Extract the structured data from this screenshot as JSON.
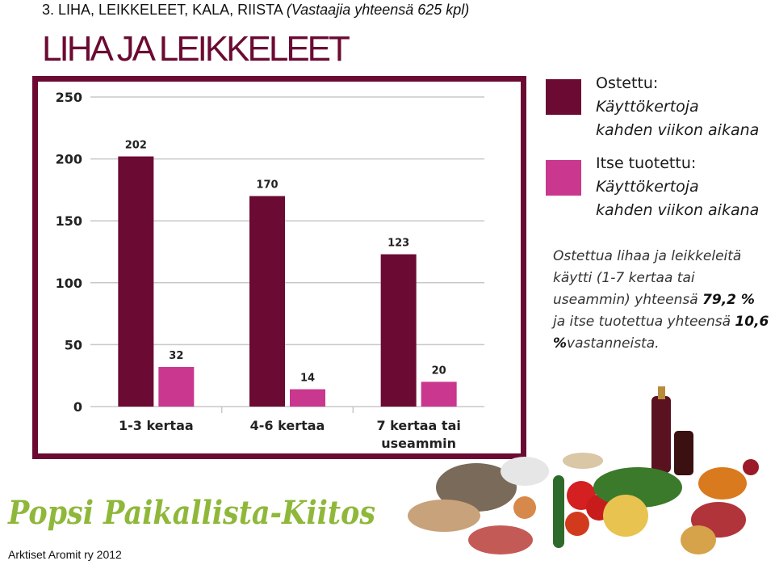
{
  "header": {
    "section": "3. LIHA, LEIKKELEET, KALA, RIISTA",
    "respondents": "(Vastaajia yhteensä 625 kpl)"
  },
  "title": "LIHA JA LEIKKELEET",
  "chart_data": {
    "type": "bar",
    "categories": [
      "1-3 kertaa",
      "4-6 kertaa",
      "7 kertaa tai useammin"
    ],
    "category_lines": [
      [
        "1-3 kertaa"
      ],
      [
        "4-6 kertaa"
      ],
      [
        "7 kertaa tai",
        "useammin"
      ]
    ],
    "series": [
      {
        "name": "Ostettu: Käyttökertoja kahden viikon aikana",
        "values": [
          202,
          170,
          123
        ],
        "color": "#6b0a33"
      },
      {
        "name": "Itse tuotettu: Käyttökertoja kahden viikon aikana",
        "values": [
          32,
          14,
          20
        ],
        "color": "#c9378e"
      }
    ],
    "yticks": [
      "0",
      "50",
      "100",
      "150",
      "200",
      "250"
    ],
    "ylim": [
      0,
      250
    ],
    "grid": true,
    "legend_position": "right"
  },
  "legend": [
    {
      "line1": "Ostettu:",
      "line2": "Käyttökertoja",
      "line3": "kahden viikon aikana",
      "color": "#6b0a33"
    },
    {
      "line1": "Itse tuotettu:",
      "line2": "Käyttökertoja",
      "line3": "kahden viikon aikana",
      "color": "#c9378e"
    }
  ],
  "note": {
    "part1": "Ostettua lihaa ja leikkeleitä käytti (1-7 kertaa tai useammin) yhteensä",
    "pct_bought": "79,2 %",
    "part2": "ja itse tuotettua yhteensä",
    "pct_self": "10,6 %",
    "part3": "vastanneista."
  },
  "logo_text": "Popsi Paikallista-Kiitos",
  "footer": "Arktiset Aromit ry 2012"
}
